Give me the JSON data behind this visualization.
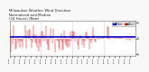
{
  "title": "Milwaukee Weather Wind Direction\nNormalized and Median\n(24 Hours) (New)",
  "title_fontsize": 2.8,
  "background_color": "#f8f8f8",
  "plot_bg_color": "#ffffff",
  "grid_color": "#bbbbbb",
  "bar_color": "#cc0000",
  "median_color": "#0000cc",
  "median_value": 0.35,
  "ylim": [
    -5.5,
    5.5
  ],
  "ytick_values": [
    -5,
    0,
    5
  ],
  "ytick_labels": [
    "-5",
    "0",
    "5"
  ],
  "num_points": 144,
  "legend_labels": [
    "Median",
    "Value"
  ],
  "legend_colors": [
    "#0000cc",
    "#cc0000"
  ],
  "seed": 7
}
